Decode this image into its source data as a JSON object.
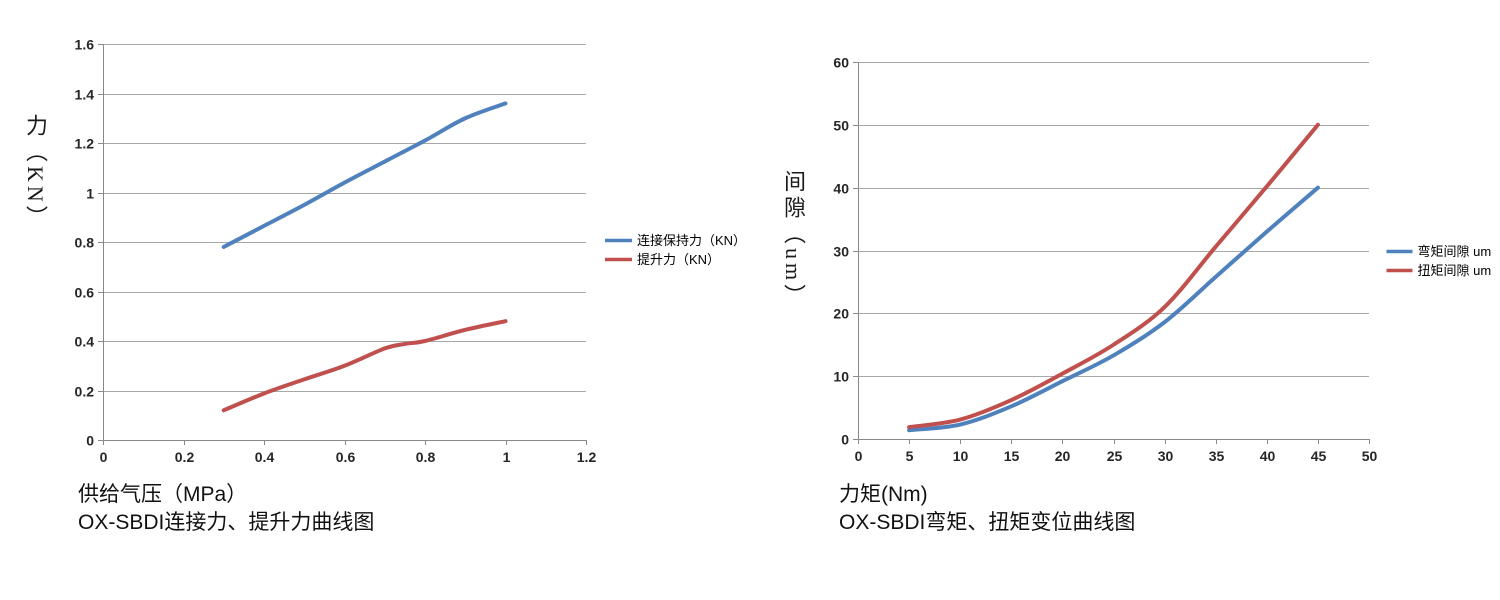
{
  "chart_data": [
    {
      "type": "line",
      "title": "OX-SBDI连接力、提升力曲线图",
      "xlabel": "供给气压（MPa）",
      "ylabel": "力（KN）",
      "xlim": [
        0,
        1.2
      ],
      "ylim": [
        0,
        1.6
      ],
      "x_ticks": [
        "0",
        "0.2",
        "0.4",
        "0.6",
        "0.8",
        "1",
        "1.2"
      ],
      "y_ticks": [
        "0",
        "0.2",
        "0.4",
        "0.6",
        "0.8",
        "1",
        "1.2",
        "1.4",
        "1.6"
      ],
      "grid": true,
      "legend_position": "right",
      "grid_color": "#a8a8a8",
      "axis_color": "#898989",
      "series": [
        {
          "name": "连接保持力（KN）",
          "color": "#4F81BD",
          "points": [
            [
              0.3,
              0.78
            ],
            [
              0.4,
              0.865
            ],
            [
              0.5,
              0.95
            ],
            [
              0.6,
              1.04
            ],
            [
              0.7,
              1.125
            ],
            [
              0.8,
              1.21
            ],
            [
              0.9,
              1.3
            ],
            [
              1,
              1.36
            ]
          ]
        },
        {
          "name": "提升力（KN）",
          "color": "#C0504D",
          "points": [
            [
              0.3,
              0.12
            ],
            [
              0.4,
              0.188
            ],
            [
              0.5,
              0.245
            ],
            [
              0.6,
              0.3
            ],
            [
              0.7,
              0.37
            ],
            [
              0.75,
              0.388
            ],
            [
              0.8,
              0.4
            ],
            [
              0.9,
              0.445
            ],
            [
              1,
              0.48
            ]
          ]
        }
      ]
    },
    {
      "type": "line",
      "title": "OX-SBDI弯矩、扭矩变位曲线图",
      "xlabel": "力矩(Nm)",
      "ylabel": "间隙（um）",
      "xlim": [
        0,
        50
      ],
      "ylim": [
        0,
        60
      ],
      "x_ticks": [
        "0",
        "5",
        "10",
        "15",
        "20",
        "25",
        "30",
        "35",
        "40",
        "45",
        "50"
      ],
      "y_ticks": [
        "0",
        "10",
        "20",
        "30",
        "40",
        "50",
        "60"
      ],
      "grid": true,
      "legend_position": "right",
      "grid_color": "#a8a8a8",
      "axis_color": "#898989",
      "series": [
        {
          "name": "弯矩间隙 um",
          "color": "#4F81BD",
          "points": [
            [
              5,
              1.4
            ],
            [
              10,
              2.3
            ],
            [
              15,
              5.2
            ],
            [
              20,
              9.2
            ],
            [
              25,
              13.3
            ],
            [
              30,
              18.6
            ],
            [
              35,
              25.8
            ],
            [
              40,
              33
            ],
            [
              45,
              40
            ]
          ]
        },
        {
          "name": "扭矩间隙 um",
          "color": "#C0504D",
          "points": [
            [
              5,
              1.9
            ],
            [
              10,
              3.1
            ],
            [
              15,
              6.2
            ],
            [
              20,
              10.4
            ],
            [
              25,
              15
            ],
            [
              30,
              21
            ],
            [
              35,
              30.6
            ],
            [
              40,
              40.2
            ],
            [
              45,
              50
            ]
          ]
        }
      ]
    }
  ]
}
